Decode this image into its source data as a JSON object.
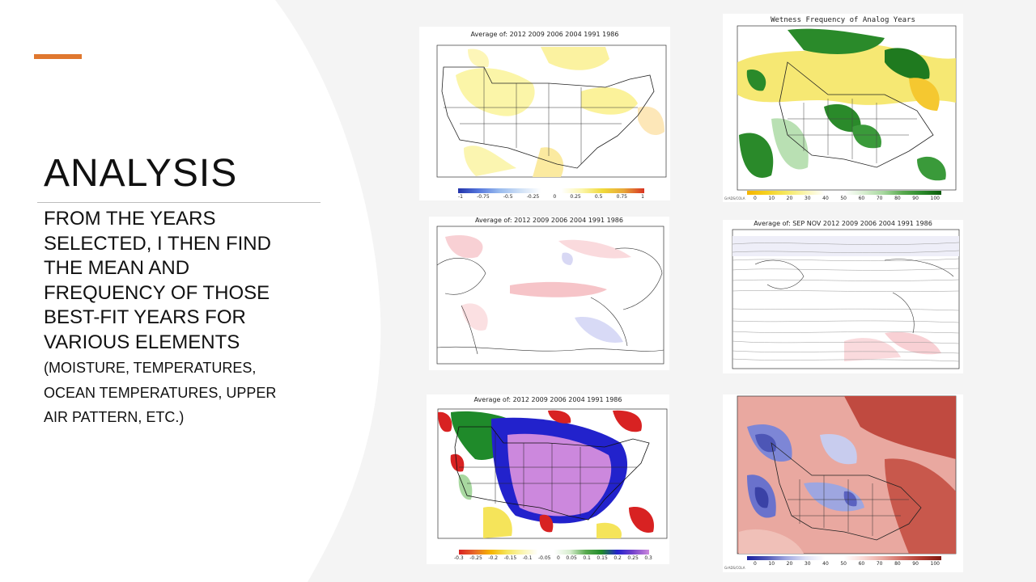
{
  "slide": {
    "title": "ANALYSIS",
    "body_main": "FROM THE YEARS SELECTED, I THEN FIND THE MEAN AND FREQUENCY OF THOSE BEST-FIT YEARS FOR VARIOUS ELEMENTS",
    "body_small": "(MOISTURE, TEMPERATURES, OCEAN TEMPERATURES, UPPER AIR PATTERN, ETC.)",
    "accent_color": "#e0782f"
  },
  "maps": {
    "m1": {
      "title": "Average of: 2012 2009 2006 2004 1991 1986",
      "colorbar": [
        "-1",
        "-0.75",
        "-0.5",
        "-0.25",
        "0",
        "0.25",
        "0.5",
        "0.75",
        "1"
      ]
    },
    "m2": {
      "title": "Wetness Frequency of Analog Years",
      "colorbar": [
        "0",
        "10",
        "20",
        "30",
        "40",
        "50",
        "60",
        "70",
        "80",
        "90",
        "100"
      ],
      "credit": "GrADS/COLA"
    },
    "m3": {
      "title": "Average of: 2012 2009 2006 2004 1991 1986"
    },
    "m4": {
      "title": "Average of: SEP NOV 2012 2009 2006 2004 1991 1986"
    },
    "m5": {
      "title": "Average of: 2012 2009 2006 2004 1991 1986",
      "colorbar": [
        "-0.3",
        "-0.25",
        "-0.2",
        "-0.15",
        "-0.1",
        "-0.05",
        "0",
        "0.05",
        "0.1",
        "0.15",
        "0.2",
        "0.25",
        "0.3"
      ]
    },
    "m6": {
      "colorbar": [
        "0",
        "10",
        "20",
        "30",
        "40",
        "50",
        "60",
        "70",
        "80",
        "90",
        "100"
      ],
      "credit": "GrADS/COLA"
    }
  }
}
